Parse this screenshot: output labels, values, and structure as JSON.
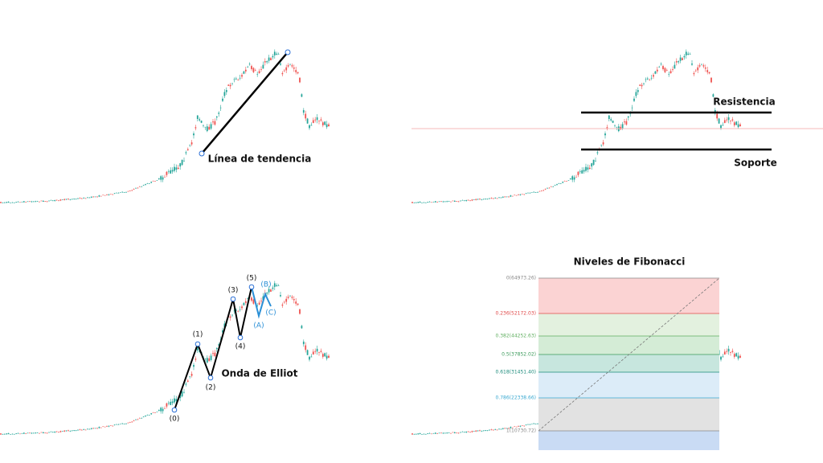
{
  "panels": [
    {
      "label": "Línea de tendencia"
    },
    {
      "labels": [
        "Resistencia",
        "Soporte"
      ]
    },
    {
      "label": "Onda de Elliot",
      "waves": [
        "(0)",
        "(1)",
        "(2)",
        "(3)",
        "(4)",
        "(5)"
      ],
      "corrections": [
        "(A)",
        "(B)",
        "(C)"
      ]
    },
    {
      "title": "Niveles de Fibonacci",
      "levels": [
        "0(64973.26)",
        "0.236(52172.03)",
        "0.382(44252.63)",
        "0.5(37852.02)",
        "0.618(31451.40)",
        "0.786(22338.66)",
        "1(10730.72)"
      ]
    }
  ]
}
